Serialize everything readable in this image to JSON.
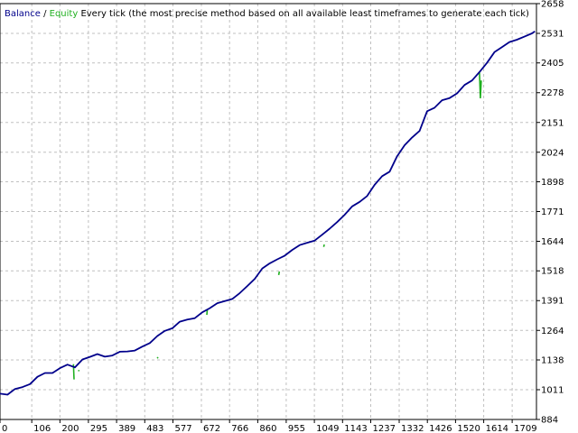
{
  "legend": {
    "balance": "Balance",
    "separator": " / ",
    "equity": "Equity",
    "description": "Every tick (the most precise method based on all available least timeframes to generate each tick)"
  },
  "colors": {
    "balance": "#00008b",
    "equity": "#20b020",
    "grid": "#c0c0c0",
    "axis": "#000000",
    "background": "#ffffff"
  },
  "chart_data": {
    "type": "line",
    "title": "",
    "xlabel": "",
    "ylabel": "",
    "xlim": [
      0,
      1790
    ],
    "ylim": [
      884,
      2658
    ],
    "x_ticks": [
      "0",
      "106",
      "200",
      "295",
      "389",
      "483",
      "577",
      "672",
      "766",
      "860",
      "955",
      "1049",
      "1143",
      "1237",
      "1332",
      "1426",
      "1520",
      "1614",
      "1709"
    ],
    "y_ticks": [
      "2658",
      "2531",
      "2405",
      "2278",
      "2151",
      "2024",
      "1898",
      "1771",
      "1644",
      "1518",
      "1391",
      "1264",
      "1138",
      "1011",
      "884"
    ],
    "grid": true,
    "legend_position": "top-left",
    "series": [
      {
        "name": "Balance",
        "x": [
          0,
          25,
          50,
          75,
          100,
          125,
          150,
          175,
          200,
          225,
          250,
          275,
          300,
          325,
          350,
          375,
          400,
          425,
          450,
          475,
          500,
          525,
          550,
          575,
          600,
          625,
          650,
          675,
          700,
          725,
          750,
          775,
          800,
          825,
          850,
          875,
          900,
          925,
          950,
          975,
          1000,
          1025,
          1050,
          1075,
          1100,
          1125,
          1150,
          1175,
          1200,
          1225,
          1250,
          1275,
          1300,
          1325,
          1350,
          1375,
          1400,
          1425,
          1450,
          1475,
          1500,
          1525,
          1550,
          1575,
          1600,
          1625,
          1650,
          1675,
          1700,
          1725,
          1750,
          1775,
          1785
        ],
        "values": [
          994,
          990,
          1014,
          1022,
          1035,
          1066,
          1082,
          1082,
          1103,
          1118,
          1106,
          1140,
          1151,
          1163,
          1152,
          1157,
          1173,
          1174,
          1178,
          1195,
          1210,
          1240,
          1262,
          1273,
          1301,
          1310,
          1316,
          1341,
          1359,
          1380,
          1389,
          1398,
          1423,
          1453,
          1484,
          1528,
          1550,
          1567,
          1583,
          1607,
          1628,
          1638,
          1647,
          1672,
          1698,
          1726,
          1757,
          1793,
          1812,
          1837,
          1885,
          1922,
          1941,
          2007,
          2054,
          2087,
          2115,
          2199,
          2214,
          2246,
          2255,
          2275,
          2311,
          2330,
          2366,
          2405,
          2451,
          2472,
          2494,
          2504,
          2517,
          2531,
          2540
        ]
      },
      {
        "name": "Equity",
        "x": [
          245,
          247,
          262,
          264,
          525,
          527,
          690,
          692,
          930,
          932,
          1080,
          1082,
          1600,
          1603,
          1606
        ],
        "values": [
          1120,
          1055,
          1095,
          1090,
          1150,
          1145,
          1330,
          1355,
          1500,
          1515,
          1620,
          1630,
          2363,
          2254,
          2330
        ]
      }
    ]
  }
}
